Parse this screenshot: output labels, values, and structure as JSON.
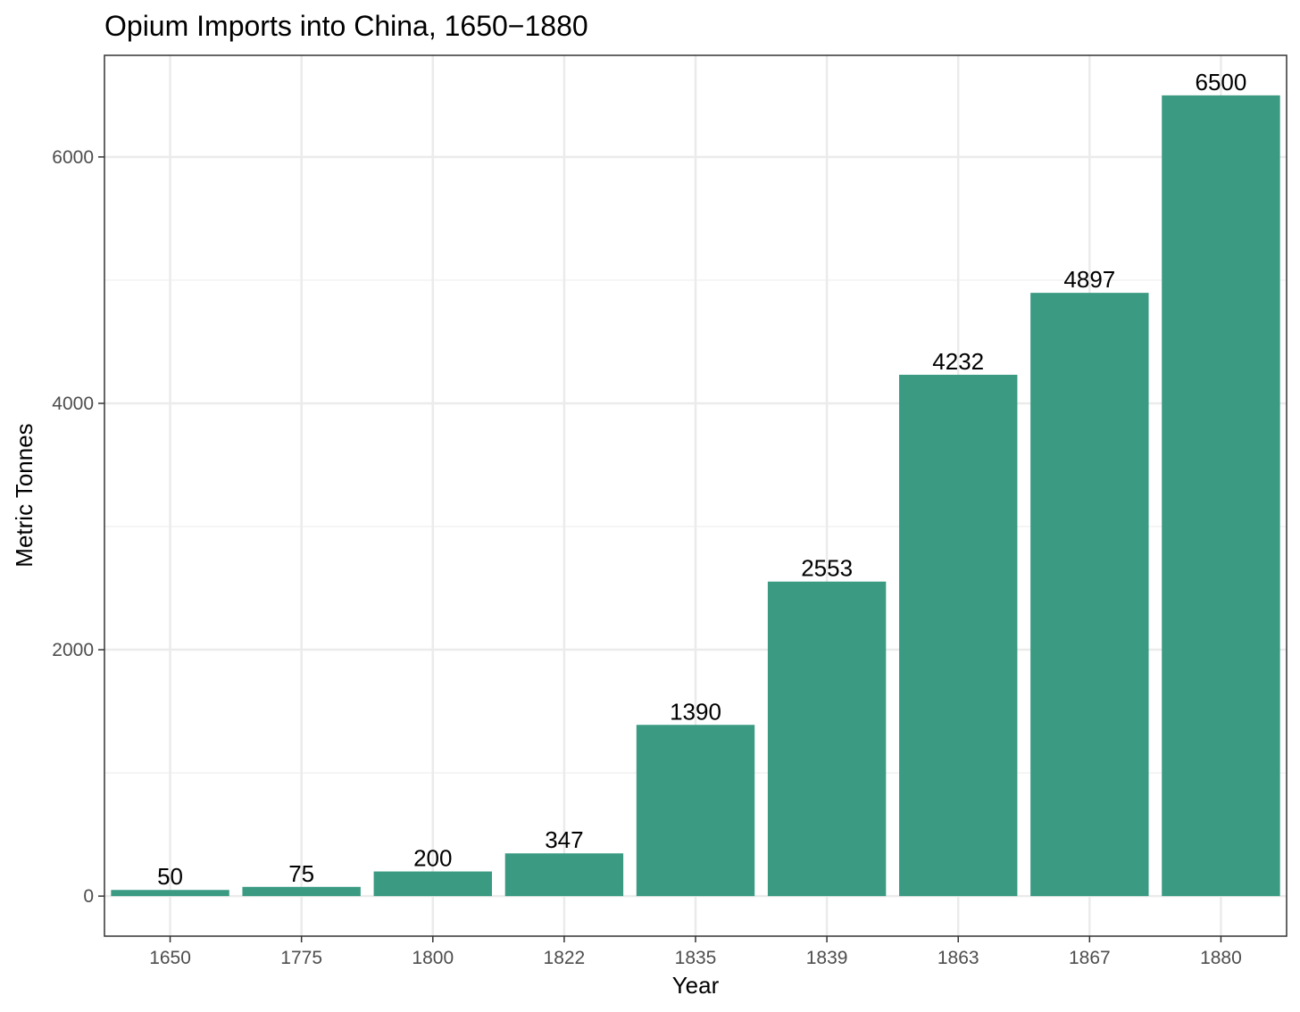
{
  "chart_data": {
    "type": "bar",
    "title": "Opium Imports into China, 1650−1880",
    "xlabel": "Year",
    "ylabel": "Metric Tonnes",
    "categories": [
      "1650",
      "1775",
      "1800",
      "1822",
      "1835",
      "1839",
      "1863",
      "1867",
      "1880"
    ],
    "values": [
      50,
      75,
      200,
      347,
      1390,
      2553,
      4232,
      4897,
      6500
    ],
    "data_labels": [
      "50",
      "75",
      "200",
      "347",
      "1390",
      "2553",
      "4232",
      "4897",
      "6500"
    ],
    "y_ticks": [
      0,
      2000,
      4000,
      6000
    ],
    "y_tick_labels": [
      "0",
      "2000",
      "4000",
      "6000"
    ],
    "ylim": [
      -325,
      6825
    ],
    "grid": true,
    "legend": "none",
    "colors": {
      "bar": "#3a9a82",
      "panel_border": "#333333",
      "grid_major": "#ebebeb",
      "grid_minor": "#f2f2f2",
      "tick_label": "#4d4d4d"
    }
  }
}
